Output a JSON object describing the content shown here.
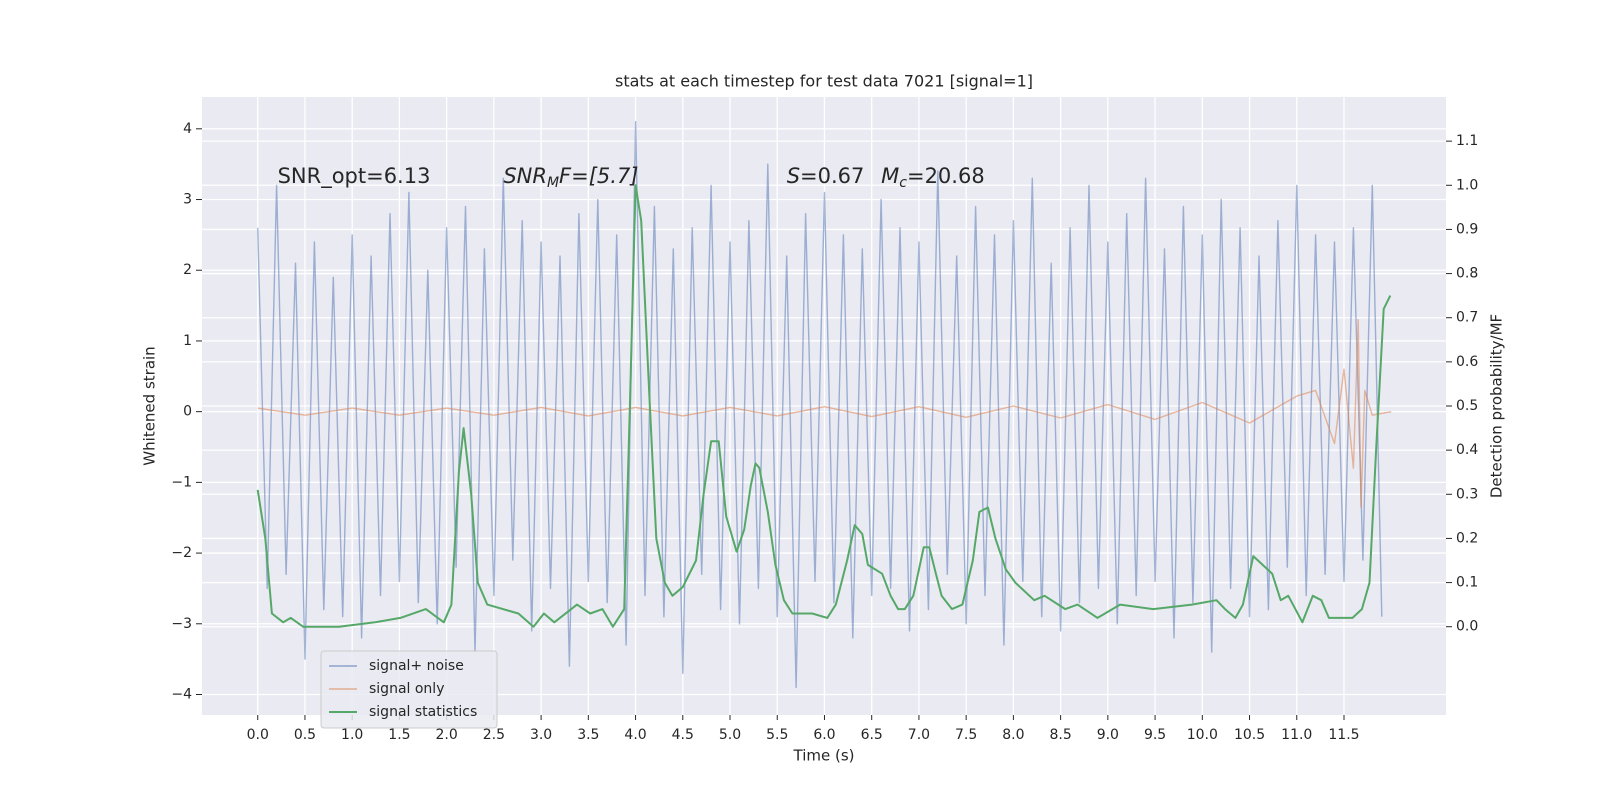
{
  "chart_data": {
    "type": "line",
    "title": "stats at each timestep for test data 7021 [signal=1]",
    "xlabel": "Time (s)",
    "ylabel": "Whitened strain",
    "y2label": "Detection probability/MF",
    "annotations": [
      [
        "SNR_opt=6.13"
      ],
      [
        "SNR",
        "M",
        "F=[5.7]"
      ],
      [
        "S",
        "=0.67"
      ],
      [
        "M",
        "c",
        "=20.68"
      ]
    ],
    "xlim": [
      -0.59,
      12.58
    ],
    "ylim": [
      -4.29,
      4.45
    ],
    "y2lim": [
      -0.2,
      1.2
    ],
    "xticks": [
      {
        "value": 0,
        "label": "0.0"
      },
      0.5,
      {
        "value": 1,
        "label": "1.0"
      },
      1.5,
      {
        "value": 2,
        "label": "2.0"
      },
      2.5,
      {
        "value": 3,
        "label": "3.0"
      },
      3.5,
      {
        "value": 4,
        "label": "4.0"
      },
      4.5,
      {
        "value": 5,
        "label": "5.0"
      },
      5.5,
      {
        "value": 6,
        "label": "6.0"
      },
      6.5,
      {
        "value": 7,
        "label": "7.0"
      },
      7.5,
      {
        "value": 8,
        "label": "8.0"
      },
      8.5,
      {
        "value": 9,
        "label": "9.0"
      },
      9.5,
      {
        "value": 10,
        "label": "10.0"
      },
      10.5,
      {
        "value": 11,
        "label": "11.0"
      },
      11.5
    ],
    "yticks": [
      {
        "value": -4,
        "label": "−4"
      },
      {
        "value": -3,
        "label": "−3"
      },
      {
        "value": -2,
        "label": "−2"
      },
      {
        "value": -1,
        "label": "−1"
      },
      0,
      1,
      2,
      3,
      4
    ],
    "y2ticks": [
      {
        "value": 0,
        "label": "0.0"
      },
      0.1,
      0.2,
      0.3,
      0.4,
      0.5,
      0.6,
      0.7,
      0.8,
      0.9,
      {
        "value": 1,
        "label": "1.0"
      },
      1.1
    ],
    "grid": true,
    "legend": "lower left",
    "series": [
      {
        "name": "signal+ noise",
        "color": "#4c72b0",
        "x": [
          0.0,
          0.1,
          0.2,
          0.3,
          0.4,
          0.5,
          0.6,
          0.7,
          0.8,
          0.9,
          1.0,
          1.1,
          1.2,
          1.3,
          1.4,
          1.5,
          1.6,
          1.7,
          1.8,
          1.9,
          2.0,
          2.1,
          2.2,
          2.3,
          2.4,
          2.5,
          2.6,
          2.7,
          2.8,
          2.9,
          3.0,
          3.1,
          3.2,
          3.3,
          3.4,
          3.5,
          3.6,
          3.7,
          3.8,
          3.9,
          4.0,
          4.1,
          4.2,
          4.3,
          4.4,
          4.5,
          4.6,
          4.7,
          4.8,
          4.9,
          5.0,
          5.1,
          5.2,
          5.3,
          5.4,
          5.5,
          5.6,
          5.7,
          5.8,
          5.9,
          6.0,
          6.1,
          6.2,
          6.3,
          6.4,
          6.5,
          6.6,
          6.7,
          6.8,
          6.9,
          7.0,
          7.1,
          7.2,
          7.3,
          7.4,
          7.5,
          7.6,
          7.7,
          7.8,
          7.9,
          8.0,
          8.1,
          8.2,
          8.3,
          8.4,
          8.5,
          8.6,
          8.7,
          8.8,
          8.9,
          9.0,
          9.1,
          9.2,
          9.3,
          9.4,
          9.5,
          9.6,
          9.7,
          9.8,
          9.9,
          10.0,
          10.1,
          10.2,
          10.3,
          10.4,
          10.5,
          10.6,
          10.7,
          10.8,
          10.9,
          11.0,
          11.1,
          11.2,
          11.3,
          11.4,
          11.5,
          11.6,
          11.7,
          11.8,
          11.9
        ],
        "values": [
          2.6,
          -2.5,
          3.2,
          -2.3,
          2.1,
          -3.5,
          2.4,
          -2.8,
          1.9,
          -2.9,
          2.5,
          -3.2,
          2.2,
          -2.6,
          2.8,
          -2.4,
          3.1,
          -2.7,
          2.0,
          -3.0,
          2.6,
          -2.2,
          2.9,
          -3.4,
          2.3,
          -2.6,
          3.3,
          -2.1,
          2.7,
          -3.1,
          2.4,
          -2.5,
          2.2,
          -3.6,
          2.8,
          -2.4,
          3.0,
          -2.7,
          2.5,
          -3.3,
          4.1,
          -2.6,
          2.9,
          -2.9,
          2.3,
          -3.7,
          2.6,
          -2.3,
          3.2,
          -2.8,
          2.4,
          -3.0,
          2.7,
          -2.5,
          3.5,
          -2.9,
          2.2,
          -3.9,
          2.8,
          -2.4,
          3.1,
          -2.7,
          2.5,
          -3.2,
          2.3,
          -2.6,
          3.0,
          -2.5,
          2.6,
          -3.1,
          2.4,
          -2.8,
          3.4,
          -2.3,
          2.2,
          -3.0,
          2.9,
          -2.6,
          2.5,
          -3.3,
          2.7,
          -2.4,
          3.3,
          -2.9,
          2.1,
          -3.1,
          2.6,
          -2.7,
          3.2,
          -2.5,
          2.4,
          -3.0,
          2.8,
          -2.6,
          3.3,
          -2.4,
          2.3,
          -3.2,
          2.9,
          -2.7,
          2.5,
          -3.4,
          3.0,
          -2.5,
          2.6,
          -2.9,
          2.2,
          -2.8,
          2.7,
          -2.2,
          3.2,
          -2.6,
          2.5,
          -2.3,
          2.4,
          -2.4,
          2.6,
          -2.1,
          3.2,
          -2.9
        ]
      },
      {
        "name": "signal only",
        "color": "#dd8452",
        "x": [
          0,
          0.5,
          1,
          1.5,
          2,
          2.5,
          3,
          3.5,
          4,
          4.5,
          5,
          5.5,
          6,
          6.5,
          7,
          7.5,
          8,
          8.5,
          9,
          9.5,
          10,
          10.5,
          11,
          11.2,
          11.4,
          11.5,
          11.6,
          11.65,
          11.68,
          11.72,
          11.8,
          12.0
        ],
        "values": [
          0.05,
          -0.05,
          0.05,
          -0.05,
          0.05,
          -0.05,
          0.06,
          -0.06,
          0.06,
          -0.06,
          0.06,
          -0.06,
          0.07,
          -0.07,
          0.07,
          -0.08,
          0.08,
          -0.09,
          0.1,
          -0.11,
          0.13,
          -0.16,
          0.22,
          0.3,
          -0.45,
          0.6,
          -0.8,
          1.3,
          -1.35,
          0.3,
          -0.05,
          0.0
        ]
      },
      {
        "name": "signal statistics",
        "color": "#55a868",
        "axis": "y2",
        "x": [
          0.0,
          0.08,
          0.15,
          0.27,
          0.35,
          0.48,
          0.86,
          1.24,
          1.51,
          1.78,
          1.97,
          2.05,
          2.13,
          2.18,
          2.26,
          2.33,
          2.43,
          2.76,
          2.92,
          3.03,
          3.14,
          3.38,
          3.52,
          3.65,
          3.76,
          3.88,
          3.94,
          4.0,
          4.06,
          4.14,
          4.22,
          4.31,
          4.39,
          4.5,
          4.64,
          4.72,
          4.8,
          4.88,
          4.96,
          5.07,
          5.15,
          5.22,
          5.27,
          5.31,
          5.4,
          5.48,
          5.57,
          5.66,
          5.87,
          6.03,
          6.12,
          6.24,
          6.32,
          6.4,
          6.46,
          6.61,
          6.7,
          6.78,
          6.85,
          6.94,
          7.05,
          7.11,
          7.18,
          7.24,
          7.35,
          7.46,
          7.57,
          7.64,
          7.73,
          7.81,
          7.92,
          8.02,
          8.22,
          8.33,
          8.55,
          8.68,
          8.89,
          9.13,
          9.48,
          9.89,
          10.15,
          10.24,
          10.35,
          10.43,
          10.54,
          10.74,
          10.83,
          10.91,
          11.06,
          11.17,
          11.26,
          11.34,
          11.59,
          11.69,
          11.77,
          11.84,
          11.92,
          11.99
        ],
        "values": [
          0.31,
          0.2,
          0.03,
          0.01,
          0.02,
          0.0,
          0.0,
          0.01,
          0.02,
          0.04,
          0.01,
          0.05,
          0.35,
          0.45,
          0.3,
          0.1,
          0.05,
          0.03,
          0.0,
          0.03,
          0.01,
          0.05,
          0.03,
          0.04,
          0.0,
          0.04,
          0.5,
          1.0,
          0.92,
          0.55,
          0.2,
          0.1,
          0.07,
          0.09,
          0.15,
          0.3,
          0.42,
          0.42,
          0.25,
          0.17,
          0.22,
          0.32,
          0.37,
          0.36,
          0.26,
          0.14,
          0.06,
          0.03,
          0.03,
          0.02,
          0.05,
          0.15,
          0.23,
          0.21,
          0.14,
          0.12,
          0.07,
          0.04,
          0.04,
          0.07,
          0.18,
          0.18,
          0.12,
          0.07,
          0.04,
          0.05,
          0.15,
          0.26,
          0.27,
          0.2,
          0.13,
          0.1,
          0.06,
          0.07,
          0.04,
          0.05,
          0.02,
          0.05,
          0.04,
          0.05,
          0.06,
          0.04,
          0.02,
          0.05,
          0.16,
          0.12,
          0.06,
          0.07,
          0.01,
          0.07,
          0.06,
          0.02,
          0.02,
          0.04,
          0.1,
          0.4,
          0.72,
          0.75
        ]
      }
    ]
  }
}
